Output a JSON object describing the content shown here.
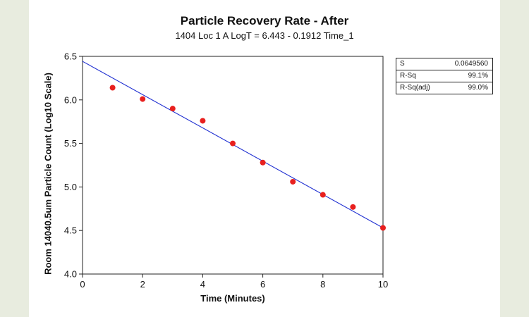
{
  "chart_data": {
    "type": "scatter",
    "title": "Particle Recovery Rate - After",
    "subtitle": "1404 Loc 1 A LogT =  6.443 - 0.1912 Time_1",
    "xlabel": "Time (Minutes)",
    "ylabel": "Room 14040.5um Particle Count (Log10 Scale)",
    "xlim": [
      0,
      10
    ],
    "ylim": [
      4.0,
      6.5
    ],
    "xticks": [
      "0",
      "2",
      "4",
      "6",
      "8",
      "10"
    ],
    "yticks": [
      "4.0",
      "4.5",
      "5.0",
      "5.5",
      "6.0",
      "6.5"
    ],
    "x": [
      1,
      2,
      3,
      4,
      5,
      6,
      7,
      8,
      9,
      10
    ],
    "y": [
      6.14,
      6.01,
      5.9,
      5.76,
      5.5,
      5.28,
      5.06,
      4.91,
      4.77,
      4.53
    ],
    "fit_line": {
      "intercept": 6.443,
      "slope": -0.1912
    },
    "grid": false,
    "colors": {
      "points": "#e8201e",
      "line": "#1f2fd1"
    }
  },
  "stats": [
    {
      "label": "S",
      "value": "0.0649560"
    },
    {
      "label": "R-Sq",
      "value": "99.1%"
    },
    {
      "label": "R-Sq(adj)",
      "value": "99.0%"
    }
  ]
}
